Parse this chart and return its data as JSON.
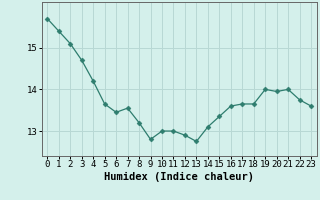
{
  "x": [
    0,
    1,
    2,
    3,
    4,
    5,
    6,
    7,
    8,
    9,
    10,
    11,
    12,
    13,
    14,
    15,
    16,
    17,
    18,
    19,
    20,
    21,
    22,
    23
  ],
  "y": [
    15.7,
    15.4,
    15.1,
    14.7,
    14.2,
    13.65,
    13.45,
    13.55,
    13.2,
    12.8,
    13.0,
    13.0,
    12.9,
    12.75,
    13.1,
    13.35,
    13.6,
    13.65,
    13.65,
    14.0,
    13.95,
    14.0,
    13.75,
    13.6
  ],
  "line_color": "#2e7d6e",
  "marker": "D",
  "marker_size": 2.5,
  "bg_color": "#d4f0eb",
  "grid_color": "#b8d8d4",
  "xlabel": "Humidex (Indice chaleur)",
  "xlabel_fontsize": 7.5,
  "tick_fontsize": 6.5,
  "yticks": [
    13,
    14,
    15
  ],
  "ylim": [
    12.4,
    16.1
  ],
  "xlim": [
    -0.5,
    23.5
  ]
}
